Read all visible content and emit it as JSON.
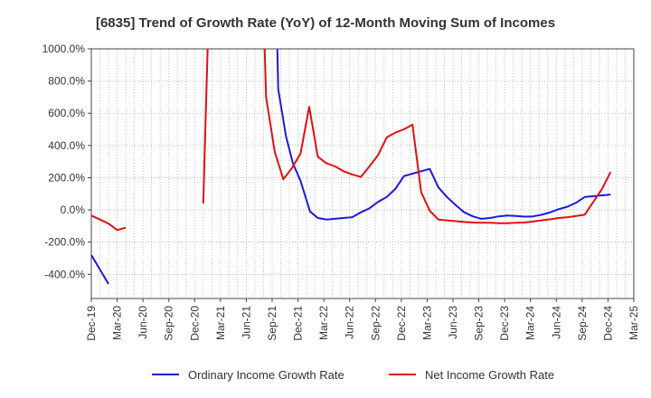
{
  "chart_data": {
    "type": "line",
    "title": "[6835]  Trend of Growth Rate (YoY) of 12-Month Moving Sum of Incomes",
    "xlabel": "",
    "ylabel": "",
    "ylim": [
      -550,
      1000
    ],
    "yticks": [
      1000,
      800,
      600,
      400,
      200,
      0,
      -200,
      -400
    ],
    "ytick_labels": [
      "1000.0%",
      "800.0%",
      "600.0%",
      "400.0%",
      "200.0%",
      "0.0%",
      "-200.0%",
      "-400.0%"
    ],
    "x_categories": [
      "Dec-19",
      "Mar-20",
      "Jun-20",
      "Sep-20",
      "Dec-20",
      "Mar-21",
      "Jun-21",
      "Sep-21",
      "Dec-21",
      "Mar-22",
      "Jun-22",
      "Sep-22",
      "Dec-22",
      "Mar-23",
      "Jun-23",
      "Sep-23",
      "Dec-23",
      "Mar-24",
      "Jun-24",
      "Sep-24",
      "Dec-24",
      "Mar-25"
    ],
    "grid": true,
    "legend_position": "bottom",
    "series": [
      {
        "name": "Ordinary Income Growth Rate",
        "color": "#1a1adf",
        "points": [
          [
            0,
            -280
          ],
          [
            1,
            -370
          ],
          [
            2,
            -460
          ],
          null,
          [
            21,
            2500
          ],
          [
            21.7,
            750
          ],
          [
            22.6,
            460
          ],
          [
            23.4,
            290
          ],
          [
            24.3,
            180
          ],
          [
            25.4,
            -10
          ],
          [
            26.3,
            -50
          ],
          [
            27.3,
            -60
          ],
          [
            28.3,
            -55
          ],
          [
            29.3,
            -50
          ],
          [
            30.3,
            -45
          ],
          [
            31.3,
            -15
          ],
          [
            32.3,
            10
          ],
          [
            33.3,
            50
          ],
          [
            34.3,
            80
          ],
          [
            35.3,
            130
          ],
          [
            36.3,
            210
          ],
          [
            37.3,
            225
          ],
          [
            38.3,
            240
          ],
          [
            39.3,
            255
          ],
          [
            40.3,
            140
          ],
          [
            41.3,
            80
          ],
          [
            42.3,
            30
          ],
          [
            43.3,
            -15
          ],
          [
            44.3,
            -40
          ],
          [
            45.3,
            -55
          ],
          [
            46.3,
            -50
          ],
          [
            47.3,
            -40
          ],
          [
            48.3,
            -35
          ],
          [
            49.3,
            -38
          ],
          [
            50.3,
            -42
          ],
          [
            51.3,
            -40
          ],
          [
            52.3,
            -30
          ],
          [
            53.3,
            -15
          ],
          [
            54.3,
            5
          ],
          [
            55.3,
            20
          ],
          [
            56.3,
            45
          ],
          [
            57.3,
            80
          ],
          [
            58.3,
            85
          ],
          [
            59.3,
            90
          ],
          [
            60.3,
            95
          ]
        ]
      },
      {
        "name": "Net Income Growth Rate",
        "color": "#e01010",
        "points": [
          [
            0,
            -35
          ],
          [
            1,
            -60
          ],
          [
            2,
            -85
          ],
          [
            3,
            -125
          ],
          [
            4,
            -110
          ],
          null,
          [
            13,
            40
          ],
          [
            14.3,
            2500
          ],
          null,
          [
            19.3,
            2500
          ],
          [
            20.3,
            700
          ],
          [
            21.3,
            360
          ],
          [
            22.3,
            190
          ],
          [
            23.3,
            260
          ],
          [
            24.3,
            350
          ],
          [
            25.3,
            640
          ],
          [
            26.3,
            330
          ],
          [
            27.3,
            290
          ],
          [
            28.3,
            270
          ],
          [
            29.3,
            240
          ],
          [
            30.3,
            220
          ],
          [
            31.3,
            205
          ],
          [
            32.3,
            270
          ],
          [
            33.3,
            340
          ],
          [
            34.3,
            450
          ],
          [
            35.3,
            480
          ],
          [
            36.3,
            500
          ],
          [
            37.3,
            530
          ],
          [
            38.3,
            110
          ],
          [
            39.3,
            -5
          ],
          [
            40.3,
            -60
          ],
          [
            41.3,
            -65
          ],
          [
            42.3,
            -70
          ],
          [
            43.3,
            -75
          ],
          [
            44.3,
            -78
          ],
          [
            45.3,
            -80
          ],
          [
            46.3,
            -80
          ],
          [
            47.3,
            -82
          ],
          [
            48.3,
            -82
          ],
          [
            49.3,
            -80
          ],
          [
            50.3,
            -78
          ],
          [
            51.3,
            -72
          ],
          [
            52.3,
            -65
          ],
          [
            53.3,
            -58
          ],
          [
            54.3,
            -50
          ],
          [
            55.3,
            -45
          ],
          [
            56.3,
            -38
          ],
          [
            57.3,
            -30
          ],
          [
            58.3,
            50
          ],
          [
            59.3,
            130
          ],
          [
            60.3,
            235
          ]
        ]
      }
    ]
  }
}
